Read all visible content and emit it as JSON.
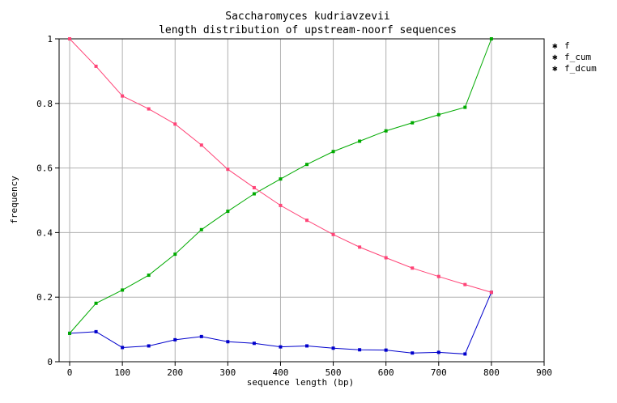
{
  "chart_data": {
    "type": "line",
    "title": "Saccharomyces kudriavzevii",
    "subtitle": "length distribution of upstream-noorf sequences",
    "xlabel": "sequence length (bp)",
    "ylabel": "frequency",
    "xlim": [
      -20,
      900
    ],
    "ylim": [
      0,
      1
    ],
    "xticks": [
      "0",
      "100",
      "200",
      "300",
      "400",
      "500",
      "600",
      "700",
      "800",
      "900"
    ],
    "yticks": [
      "0",
      "0.2",
      "0.4",
      "0.6",
      "0.8",
      "1"
    ],
    "grid": true,
    "legend_position": "right",
    "x": [
      0,
      50,
      100,
      150,
      200,
      250,
      300,
      350,
      400,
      450,
      500,
      550,
      600,
      650,
      700,
      750,
      800
    ],
    "series": [
      {
        "name": "f",
        "color": "#0000cc",
        "values": [
          0.088,
          0.093,
          0.044,
          0.049,
          0.068,
          0.078,
          0.062,
          0.057,
          0.046,
          0.049,
          0.042,
          0.037,
          0.036,
          0.027,
          0.029,
          0.024,
          0.215
        ]
      },
      {
        "name": "f_cum",
        "color": "#00aa00",
        "values": [
          0.088,
          0.181,
          0.222,
          0.268,
          0.333,
          0.409,
          0.466,
          0.52,
          0.566,
          0.611,
          0.651,
          0.683,
          0.715,
          0.74,
          0.765,
          0.788,
          1.0
        ]
      },
      {
        "name": "f_dcum",
        "color": "#ff4477",
        "values": [
          1.0,
          0.915,
          0.823,
          0.783,
          0.736,
          0.671,
          0.596,
          0.539,
          0.484,
          0.438,
          0.394,
          0.355,
          0.322,
          0.29,
          0.264,
          0.239,
          0.215
        ]
      }
    ]
  }
}
